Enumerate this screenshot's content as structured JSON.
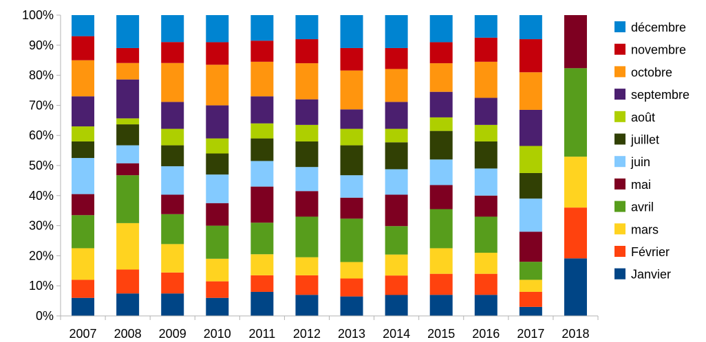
{
  "chart_data": {
    "type": "bar",
    "stacked": "percent",
    "title": "",
    "xlabel": "",
    "ylabel": "",
    "ylim": [
      0,
      100
    ],
    "y_ticks": [
      "0%",
      "10%",
      "20%",
      "30%",
      "40%",
      "50%",
      "60%",
      "70%",
      "80%",
      "90%",
      "100%"
    ],
    "grid": false,
    "legend_position": "right",
    "categories": [
      "2007",
      "2008",
      "2009",
      "2010",
      "2011",
      "2012",
      "2013",
      "2014",
      "2015",
      "2016",
      "2017",
      "2018"
    ],
    "series": [
      {
        "name": "Janvier",
        "color": "#004586",
        "values": [
          6,
          7.5,
          7.5,
          6,
          8,
          7,
          6.5,
          7,
          7,
          7,
          3,
          13
        ]
      },
      {
        "name": "Février",
        "color": "#ff420e",
        "values": [
          6,
          8,
          7,
          5.5,
          5.5,
          6.5,
          6,
          6.5,
          7,
          7,
          5,
          11.5
        ]
      },
      {
        "name": "mars",
        "color": "#ffd320",
        "values": [
          10.5,
          15.5,
          9.5,
          7.5,
          7,
          6,
          5.5,
          7,
          8.5,
          7,
          4,
          11.5
        ]
      },
      {
        "name": "avril",
        "color": "#579d1c",
        "values": [
          11,
          16,
          10,
          11,
          10.5,
          13.5,
          14.5,
          9.5,
          13,
          12,
          6,
          20
        ]
      },
      {
        "name": "mai",
        "color": "#7e0021",
        "values": [
          7,
          4,
          6.5,
          7.5,
          12,
          8.5,
          7,
          10.5,
          8,
          7,
          10,
          12
        ]
      },
      {
        "name": "juin",
        "color": "#83caff",
        "values": [
          12,
          6,
          9.5,
          9.5,
          8.5,
          8,
          7.5,
          8.5,
          8.5,
          9,
          11,
          0
        ]
      },
      {
        "name": "juillet",
        "color": "#314004",
        "values": [
          5.5,
          7,
          7,
          7,
          7.5,
          8.5,
          10,
          9,
          9.5,
          9,
          8.5,
          0
        ]
      },
      {
        "name": "août",
        "color": "#aecf00",
        "values": [
          5,
          2,
          5.5,
          5,
          5,
          5.5,
          5.5,
          4.5,
          4.5,
          5.5,
          9,
          0
        ]
      },
      {
        "name": "septembre",
        "color": "#4b1f6f",
        "values": [
          10,
          13,
          9,
          11,
          9,
          8.5,
          6.5,
          9,
          8.5,
          9,
          12,
          0
        ]
      },
      {
        "name": "octobre",
        "color": "#ff950e",
        "values": [
          12,
          5.5,
          13,
          13.5,
          11.5,
          12,
          13,
          11,
          9.5,
          12,
          12.5,
          0
        ]
      },
      {
        "name": "novembre",
        "color": "#c5000b",
        "values": [
          8,
          5,
          7,
          7.5,
          7,
          8,
          7.5,
          7,
          7,
          8,
          11,
          0
        ]
      },
      {
        "name": "décembre",
        "color": "#0084d1",
        "values": [
          7,
          11,
          9,
          9,
          8.5,
          8,
          11,
          11,
          9,
          7.5,
          8,
          0
        ]
      }
    ]
  }
}
